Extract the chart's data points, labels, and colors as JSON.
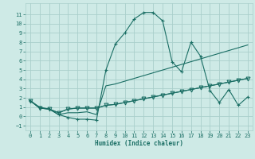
{
  "xlabel": "Humidex (Indice chaleur)",
  "background_color": "#ceeae6",
  "grid_color": "#aacfcb",
  "line_color": "#1a6e64",
  "xlim": [
    -0.5,
    23.5
  ],
  "ylim": [
    -1.5,
    12.2
  ],
  "xticks": [
    0,
    1,
    2,
    3,
    4,
    5,
    6,
    7,
    8,
    9,
    10,
    11,
    12,
    13,
    14,
    15,
    16,
    17,
    18,
    19,
    20,
    21,
    22,
    23
  ],
  "yticks": [
    -1,
    0,
    1,
    2,
    3,
    4,
    5,
    6,
    7,
    8,
    9,
    10,
    11
  ],
  "series": [
    {
      "y": [
        1.7,
        1.0,
        0.8,
        0.2,
        -0.1,
        -0.3,
        -0.3,
        -0.4,
        5.0,
        7.8,
        9.0,
        10.5,
        11.2,
        11.2,
        10.3,
        5.9,
        4.8,
        8.0,
        6.5,
        2.8,
        1.5,
        2.9,
        1.2,
        2.1
      ],
      "marker": "+",
      "markersize": 3.5
    },
    {
      "y": [
        1.7,
        0.9,
        0.8,
        0.2,
        0.4,
        0.4,
        0.5,
        0.2,
        3.3,
        3.5,
        3.8,
        4.1,
        4.4,
        4.7,
        5.0,
        5.3,
        5.6,
        5.9,
        6.2,
        6.5,
        6.8,
        7.1,
        7.4,
        7.7
      ],
      "marker": null,
      "markersize": 0
    },
    {
      "y": [
        1.7,
        0.9,
        0.8,
        0.4,
        0.8,
        0.9,
        0.9,
        0.9,
        1.2,
        1.3,
        1.5,
        1.7,
        1.9,
        2.1,
        2.3,
        2.5,
        2.7,
        2.9,
        3.1,
        3.3,
        3.5,
        3.7,
        3.9,
        4.1
      ],
      "marker": null,
      "markersize": 0
    },
    {
      "y": [
        1.7,
        0.9,
        0.8,
        0.4,
        0.8,
        0.9,
        0.9,
        0.9,
        1.2,
        1.3,
        1.5,
        1.7,
        1.9,
        2.1,
        2.3,
        2.5,
        2.7,
        2.9,
        3.1,
        3.3,
        3.5,
        3.7,
        3.9,
        4.1
      ],
      "marker": "v",
      "markersize": 3.5
    }
  ]
}
